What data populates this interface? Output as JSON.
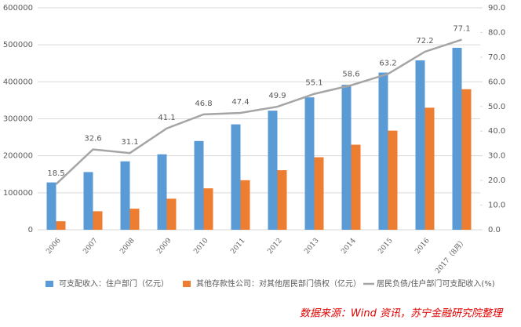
{
  "chart_data": {
    "type": "bar-line",
    "categories": [
      "2006",
      "2007",
      "2008",
      "2009",
      "2010",
      "2011",
      "2012",
      "2013",
      "2014",
      "2015",
      "2016",
      "2017（8月）"
    ],
    "series": [
      {
        "name": "可支配收入：住户部门（亿元）",
        "color": "#5b9bd5",
        "type": "bar",
        "values": [
          128000,
          156000,
          185000,
          204000,
          240000,
          285000,
          322000,
          358000,
          392000,
          425000,
          458000,
          492000
        ]
      },
      {
        "name": "其他存款性公司：对其他居民部门债权（亿元）",
        "color": "#ed7d31",
        "type": "bar",
        "values": [
          23000,
          50000,
          57000,
          84000,
          112000,
          134000,
          161000,
          196000,
          230000,
          268000,
          330000,
          380000
        ]
      },
      {
        "name": "居民负债/住户部门可支配收入(%)",
        "color": "#a5a5a5",
        "type": "line",
        "axis": "y2",
        "values": [
          18.5,
          32.6,
          31.1,
          41.1,
          46.8,
          47.4,
          49.9,
          55.1,
          58.6,
          63.2,
          72.2,
          77.1
        ]
      }
    ],
    "ylim": [
      0,
      600000
    ],
    "yticks": [
      0,
      100000,
      200000,
      300000,
      400000,
      500000,
      600000
    ],
    "y2lim": [
      0,
      90
    ],
    "y2ticks": [
      {
        "value": 0,
        "label": "0.0"
      },
      {
        "value": 10,
        "label": "10.0"
      },
      {
        "value": 20,
        "label": "20.0"
      },
      {
        "value": 30,
        "label": "30.0"
      },
      {
        "value": 40,
        "label": "40.0"
      },
      {
        "value": 50,
        "label": "50.0"
      },
      {
        "value": 60,
        "label": "60.0"
      },
      {
        "value": 70,
        "label": "70.0"
      },
      {
        "value": 80,
        "label": "80.0"
      },
      {
        "value": 90,
        "label": "90.0"
      }
    ],
    "grid": true,
    "source": "数据来源：Wind 资讯，苏宁金融研究院整理"
  }
}
